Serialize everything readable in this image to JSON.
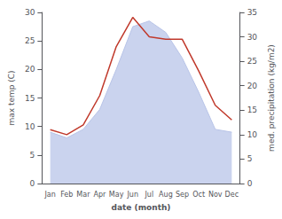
{
  "chart_data": {
    "type": "line",
    "categories": [
      "Jan",
      "Feb",
      "Mar",
      "Apr",
      "May",
      "Jun",
      "Jul",
      "Aug",
      "Sep",
      "Oct",
      "Nov",
      "Dec"
    ],
    "xlabel": "date (month)",
    "ylabel": "max temp (C)",
    "y2label": "med. precipitation (kg/m2)",
    "ylim": [
      0,
      30
    ],
    "yticks": [
      0,
      5,
      10,
      15,
      20,
      25,
      30
    ],
    "y2lim": [
      0,
      35
    ],
    "y2ticks": [
      0,
      5,
      10,
      15,
      20,
      25,
      30,
      35
    ],
    "grid": false,
    "series": [
      {
        "type": "area",
        "color": "#b8c4e8",
        "values": [
          9.0,
          8.0,
          9.5,
          13.0,
          20.0,
          27.5,
          28.5,
          26.5,
          22.0,
          16.0,
          9.5,
          9.0
        ]
      },
      {
        "type": "line",
        "axis": "y2",
        "color": "#c0392b",
        "values": [
          11.0,
          10.0,
          12.0,
          18.0,
          28.0,
          34.0,
          30.0,
          29.5,
          29.5,
          23.0,
          16.0,
          13.0
        ]
      }
    ]
  }
}
